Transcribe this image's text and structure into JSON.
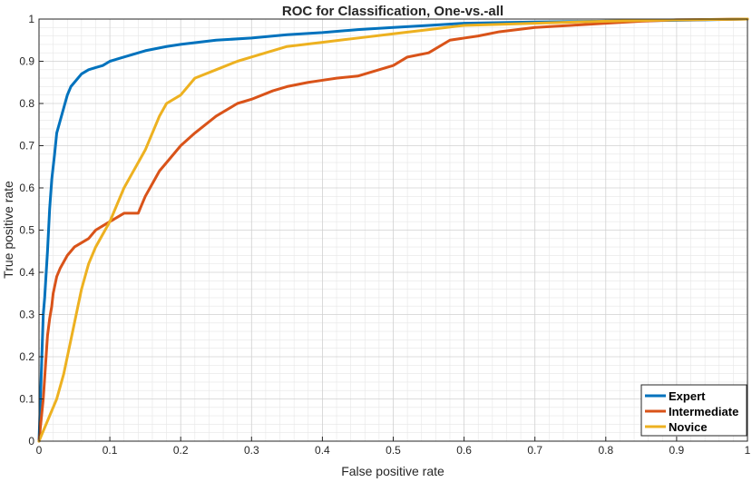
{
  "chart_data": {
    "type": "line",
    "title": "ROC for Classification, One-vs.-all",
    "xlabel": "False positive rate",
    "ylabel": "True positive rate",
    "xlim": [
      0,
      1
    ],
    "ylim": [
      0,
      1
    ],
    "xticks": [
      "0",
      "0.1",
      "0.2",
      "0.3",
      "0.4",
      "0.5",
      "0.6",
      "0.7",
      "0.8",
      "0.9",
      "1"
    ],
    "yticks": [
      "0",
      "0.1",
      "0.2",
      "0.3",
      "0.4",
      "0.5",
      "0.6",
      "0.7",
      "0.8",
      "0.9",
      "1"
    ],
    "grid": true,
    "minor_grid": true,
    "legend_position": "bottom-right",
    "series": [
      {
        "name": "Expert",
        "color": "#0072BD",
        "x": [
          0,
          0.002,
          0.004,
          0.006,
          0.008,
          0.012,
          0.015,
          0.018,
          0.022,
          0.025,
          0.03,
          0.035,
          0.04,
          0.045,
          0.05,
          0.06,
          0.07,
          0.08,
          0.09,
          0.1,
          0.12,
          0.15,
          0.18,
          0.2,
          0.25,
          0.3,
          0.35,
          0.4,
          0.45,
          0.5,
          0.55,
          0.6,
          0.7,
          0.8,
          0.9,
          1.0
        ],
        "y": [
          0,
          0.1,
          0.2,
          0.3,
          0.34,
          0.45,
          0.55,
          0.62,
          0.68,
          0.73,
          0.76,
          0.79,
          0.82,
          0.84,
          0.85,
          0.87,
          0.88,
          0.885,
          0.89,
          0.9,
          0.91,
          0.925,
          0.935,
          0.94,
          0.95,
          0.955,
          0.963,
          0.968,
          0.975,
          0.98,
          0.985,
          0.99,
          0.993,
          0.995,
          0.997,
          1.0
        ]
      },
      {
        "name": "Intermediate",
        "color": "#D95319",
        "x": [
          0,
          0.003,
          0.006,
          0.008,
          0.01,
          0.012,
          0.015,
          0.018,
          0.02,
          0.025,
          0.03,
          0.04,
          0.05,
          0.06,
          0.07,
          0.08,
          0.09,
          0.1,
          0.11,
          0.12,
          0.13,
          0.14,
          0.145,
          0.15,
          0.16,
          0.17,
          0.18,
          0.2,
          0.22,
          0.25,
          0.28,
          0.3,
          0.33,
          0.35,
          0.38,
          0.4,
          0.42,
          0.45,
          0.48,
          0.5,
          0.52,
          0.55,
          0.58,
          0.6,
          0.62,
          0.65,
          0.7,
          0.75,
          0.8,
          0.85,
          0.9,
          1.0
        ],
        "y": [
          0,
          0.05,
          0.1,
          0.15,
          0.2,
          0.25,
          0.29,
          0.32,
          0.35,
          0.39,
          0.41,
          0.44,
          0.46,
          0.47,
          0.48,
          0.5,
          0.51,
          0.52,
          0.53,
          0.54,
          0.54,
          0.54,
          0.56,
          0.58,
          0.61,
          0.64,
          0.66,
          0.7,
          0.73,
          0.77,
          0.8,
          0.81,
          0.83,
          0.84,
          0.85,
          0.855,
          0.86,
          0.865,
          0.88,
          0.89,
          0.91,
          0.92,
          0.95,
          0.955,
          0.96,
          0.97,
          0.98,
          0.985,
          0.99,
          0.995,
          0.998,
          1.0
        ]
      },
      {
        "name": "Novice",
        "color": "#EDB120",
        "x": [
          0,
          0.005,
          0.01,
          0.015,
          0.02,
          0.025,
          0.03,
          0.035,
          0.04,
          0.045,
          0.05,
          0.055,
          0.06,
          0.065,
          0.07,
          0.08,
          0.09,
          0.1,
          0.11,
          0.12,
          0.13,
          0.14,
          0.15,
          0.16,
          0.17,
          0.18,
          0.2,
          0.22,
          0.25,
          0.28,
          0.3,
          0.35,
          0.4,
          0.45,
          0.5,
          0.55,
          0.6,
          0.7,
          0.8,
          0.9,
          1.0
        ],
        "y": [
          0,
          0.02,
          0.04,
          0.06,
          0.08,
          0.1,
          0.13,
          0.16,
          0.2,
          0.24,
          0.28,
          0.32,
          0.36,
          0.39,
          0.42,
          0.46,
          0.49,
          0.52,
          0.56,
          0.6,
          0.63,
          0.66,
          0.69,
          0.73,
          0.77,
          0.8,
          0.82,
          0.86,
          0.88,
          0.9,
          0.91,
          0.935,
          0.945,
          0.955,
          0.965,
          0.975,
          0.985,
          0.99,
          0.995,
          0.998,
          1.0
        ]
      }
    ]
  }
}
